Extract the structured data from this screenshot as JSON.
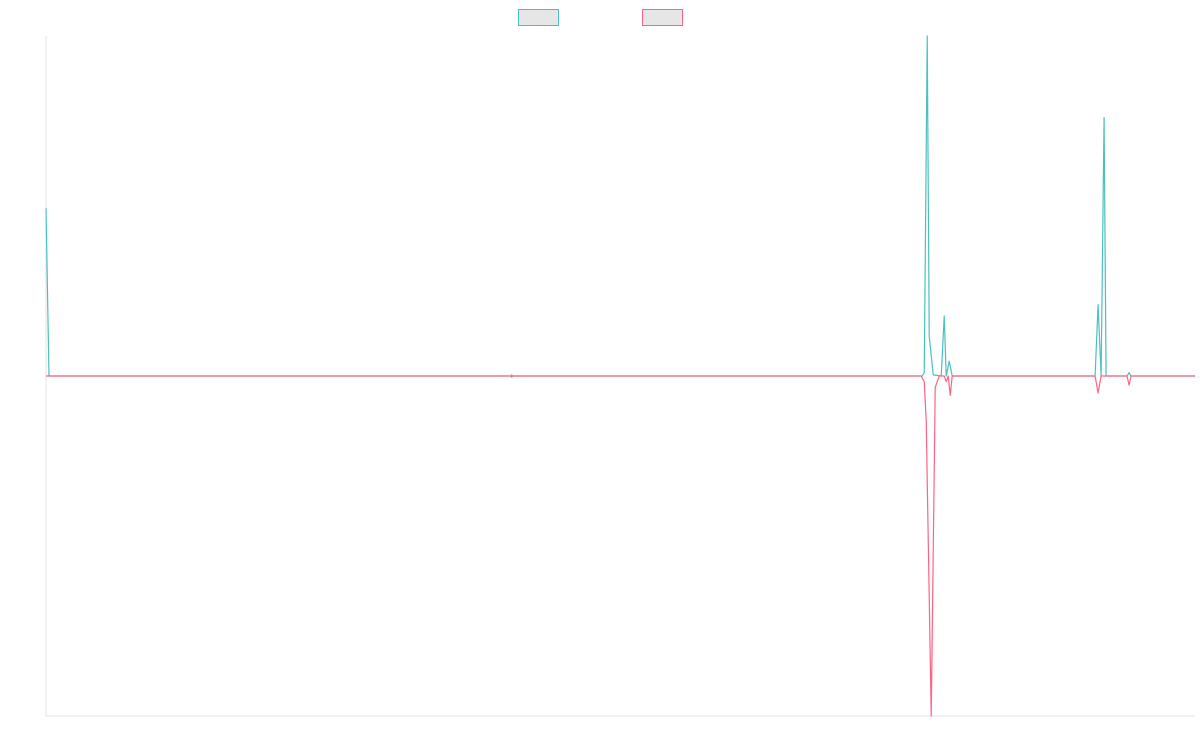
{
  "chart_data": {
    "type": "line",
    "title": "",
    "xlabel": "",
    "ylabel": "",
    "legend_position": "top-center",
    "grid": false,
    "axis_lines": true,
    "tick_labels": false,
    "x_range": [
      0,
      115
    ],
    "ylim": [
      -300,
      300
    ],
    "series": [
      {
        "name": "",
        "color": "#4bc0c0",
        "fill": "#e6e6e6",
        "points": [
          [
            0,
            148
          ],
          [
            0.3,
            0
          ],
          [
            46.5,
            0
          ],
          [
            46.6,
            1
          ],
          [
            46.7,
            0
          ],
          [
            87.7,
            0
          ],
          [
            87.9,
            3
          ],
          [
            88.2,
            380
          ],
          [
            88.4,
            35
          ],
          [
            88.8,
            1
          ],
          [
            89.6,
            0
          ],
          [
            89.9,
            53
          ],
          [
            90.1,
            0
          ],
          [
            90.4,
            13
          ],
          [
            90.7,
            0
          ],
          [
            105,
            0
          ],
          [
            105.3,
            63
          ],
          [
            105.6,
            0
          ],
          [
            105.9,
            228
          ],
          [
            106.1,
            0
          ],
          [
            108.2,
            0
          ],
          [
            108.4,
            3
          ],
          [
            108.6,
            0
          ],
          [
            115,
            0
          ]
        ]
      },
      {
        "name": "",
        "color": "#ff6384",
        "fill": "#e6e6e6",
        "points": [
          [
            0,
            0
          ],
          [
            46.5,
            0
          ],
          [
            46.6,
            -1
          ],
          [
            46.7,
            0
          ],
          [
            87.6,
            0
          ],
          [
            87.9,
            -5
          ],
          [
            88.1,
            -40
          ],
          [
            88.6,
            -300
          ],
          [
            89.0,
            -10
          ],
          [
            89.4,
            0
          ],
          [
            89.9,
            0
          ],
          [
            90.1,
            -5
          ],
          [
            90.3,
            0
          ],
          [
            90.5,
            -17
          ],
          [
            90.7,
            0
          ],
          [
            105,
            0
          ],
          [
            105.3,
            -15
          ],
          [
            105.6,
            0
          ],
          [
            108.2,
            0
          ],
          [
            108.4,
            -8
          ],
          [
            108.6,
            0
          ],
          [
            115,
            0
          ]
        ]
      }
    ]
  }
}
